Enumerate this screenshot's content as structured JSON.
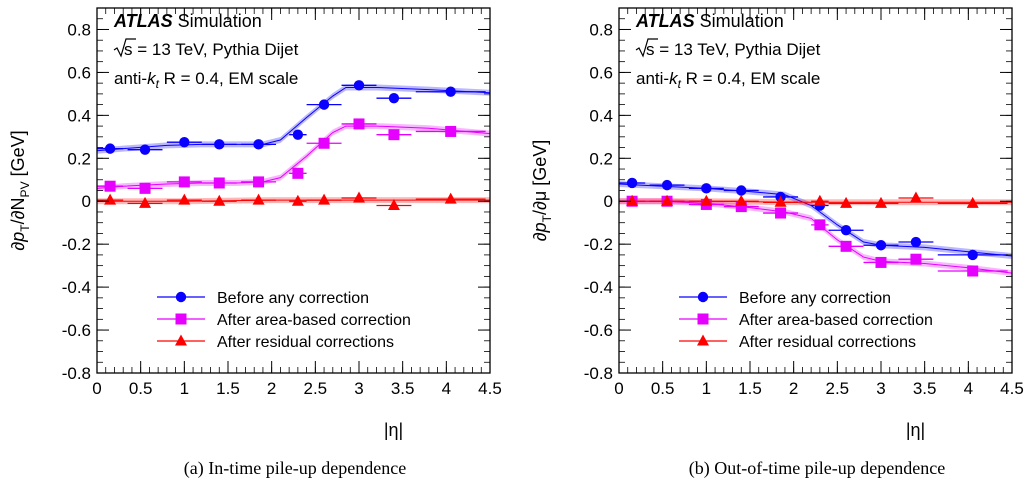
{
  "panels": [
    {
      "id": "a",
      "caption": "(a)  In-time pile-up dependence",
      "ylabel_prefix": "∂p",
      "ylabel_sub": "T",
      "ylabel_mid": "/∂N",
      "ylabel_sub2": "PV",
      "ylabel_suffix": " [GeV]",
      "xlabel": "|η|"
    },
    {
      "id": "b",
      "caption": "(b)  Out-of-time pile-up dependence",
      "ylabel_prefix": "∂p",
      "ylabel_sub": "T",
      "ylabel_mid": "/∂μ",
      "ylabel_sub2": "",
      "ylabel_suffix": " [GeV]",
      "xlabel": "|η|"
    }
  ],
  "annotations": {
    "atlas": "ATLAS",
    "simulation": "Simulation",
    "sqrt_s": "s",
    "energy": " = 13 TeV, Pythia Dijet",
    "antikt_prefix": "anti-",
    "antikt_k": "k",
    "antikt_t": "t",
    "radius": "R = 0.4, EM scale"
  },
  "legend": [
    {
      "label": "Before any correction",
      "marker": "circle",
      "color": "#0a00ff"
    },
    {
      "label": "After area-based correction",
      "marker": "square",
      "color": "#e600ff"
    },
    {
      "label": "After residual corrections",
      "marker": "triangle",
      "color": "#ff0000"
    }
  ],
  "chart_data": [
    {
      "type": "scatter",
      "xlabel": "|η|",
      "ylabel": "∂pT/∂NPV [GeV]",
      "xlim": [
        0,
        4.5
      ],
      "ylim": [
        -0.8,
        0.9
      ],
      "xticks": [
        0,
        0.5,
        1,
        1.5,
        2,
        2.5,
        3,
        3.5,
        4,
        4.5
      ],
      "yticks": [
        -0.8,
        -0.6,
        -0.4,
        -0.2,
        0,
        0.2,
        0.4,
        0.6,
        0.8
      ],
      "x": [
        0.15,
        0.55,
        1.0,
        1.4,
        1.85,
        2.3,
        2.6,
        3.0,
        3.4,
        4.05
      ],
      "xerr": [
        0.15,
        0.2,
        0.2,
        0.2,
        0.2,
        0.1,
        0.2,
        0.2,
        0.2,
        0.4
      ],
      "series": [
        {
          "name": "Before any correction",
          "values": [
            0.245,
            0.24,
            0.275,
            0.265,
            0.265,
            0.31,
            0.45,
            0.54,
            0.48,
            0.51
          ]
        },
        {
          "name": "After area-based correction",
          "values": [
            0.07,
            0.06,
            0.09,
            0.085,
            0.09,
            0.13,
            0.27,
            0.36,
            0.31,
            0.325
          ]
        },
        {
          "name": "After residual corrections",
          "values": [
            0.005,
            -0.01,
            0.005,
            0.0,
            0.005,
            0.0,
            0.005,
            0.015,
            -0.02,
            0.01
          ]
        }
      ],
      "bands": [
        {
          "x": [
            0,
            0.3,
            0.8,
            1.2,
            1.6,
            1.9,
            2.1,
            2.4,
            2.7,
            2.85,
            3.2,
            3.8,
            4.5
          ],
          "values": [
            0.235,
            0.245,
            0.26,
            0.265,
            0.265,
            0.265,
            0.285,
            0.39,
            0.49,
            0.53,
            0.53,
            0.52,
            0.505
          ]
        },
        {
          "x": [
            0,
            0.3,
            0.8,
            1.2,
            1.6,
            1.9,
            2.1,
            2.4,
            2.7,
            2.85,
            3.2,
            3.8,
            4.5
          ],
          "values": [
            0.06,
            0.07,
            0.08,
            0.085,
            0.085,
            0.09,
            0.11,
            0.21,
            0.32,
            0.35,
            0.35,
            0.34,
            0.315
          ]
        },
        {
          "x": [
            0,
            1,
            2,
            3,
            4,
            4.5
          ],
          "values": [
            0.0,
            0.0,
            0.005,
            0.005,
            0.005,
            0.005
          ]
        }
      ]
    },
    {
      "type": "scatter",
      "xlabel": "|η|",
      "ylabel": "∂pT/∂μ [GeV]",
      "xlim": [
        0,
        4.5
      ],
      "ylim": [
        -0.8,
        0.9
      ],
      "xticks": [
        0,
        0.5,
        1,
        1.5,
        2,
        2.5,
        3,
        3.5,
        4,
        4.5
      ],
      "yticks": [
        -0.8,
        -0.6,
        -0.4,
        -0.2,
        0,
        0.2,
        0.4,
        0.6,
        0.8
      ],
      "x": [
        0.15,
        0.55,
        1.0,
        1.4,
        1.85,
        2.3,
        2.6,
        3.0,
        3.4,
        4.05
      ],
      "xerr": [
        0.15,
        0.2,
        0.2,
        0.2,
        0.2,
        0.1,
        0.2,
        0.2,
        0.2,
        0.4
      ],
      "series": [
        {
          "name": "Before any correction",
          "values": [
            0.085,
            0.075,
            0.06,
            0.05,
            0.02,
            -0.02,
            -0.135,
            -0.205,
            -0.19,
            -0.25
          ]
        },
        {
          "name": "After area-based correction",
          "values": [
            0.0,
            0.0,
            -0.015,
            -0.025,
            -0.055,
            -0.11,
            -0.21,
            -0.285,
            -0.27,
            -0.325
          ]
        },
        {
          "name": "After residual corrections",
          "values": [
            0.0,
            0.0,
            0.0,
            0.0,
            -0.005,
            0.0,
            -0.01,
            -0.01,
            0.015,
            -0.01
          ]
        }
      ],
      "bands": [
        {
          "x": [
            0,
            0.5,
            1,
            1.5,
            1.9,
            2.2,
            2.5,
            2.8,
            3.0,
            3.5,
            4.0,
            4.5
          ],
          "values": [
            0.08,
            0.07,
            0.06,
            0.045,
            0.03,
            -0.02,
            -0.11,
            -0.19,
            -0.205,
            -0.215,
            -0.235,
            -0.255
          ]
        },
        {
          "x": [
            0,
            0.5,
            1,
            1.5,
            1.9,
            2.2,
            2.5,
            2.8,
            3.0,
            3.5,
            4.0,
            4.5
          ],
          "values": [
            0.0,
            0.0,
            -0.01,
            -0.03,
            -0.05,
            -0.08,
            -0.18,
            -0.26,
            -0.28,
            -0.29,
            -0.31,
            -0.335
          ]
        },
        {
          "x": [
            0,
            1,
            2,
            3,
            4,
            4.5
          ],
          "values": [
            0.0,
            0.0,
            -0.005,
            -0.005,
            -0.005,
            -0.005
          ]
        }
      ]
    }
  ]
}
